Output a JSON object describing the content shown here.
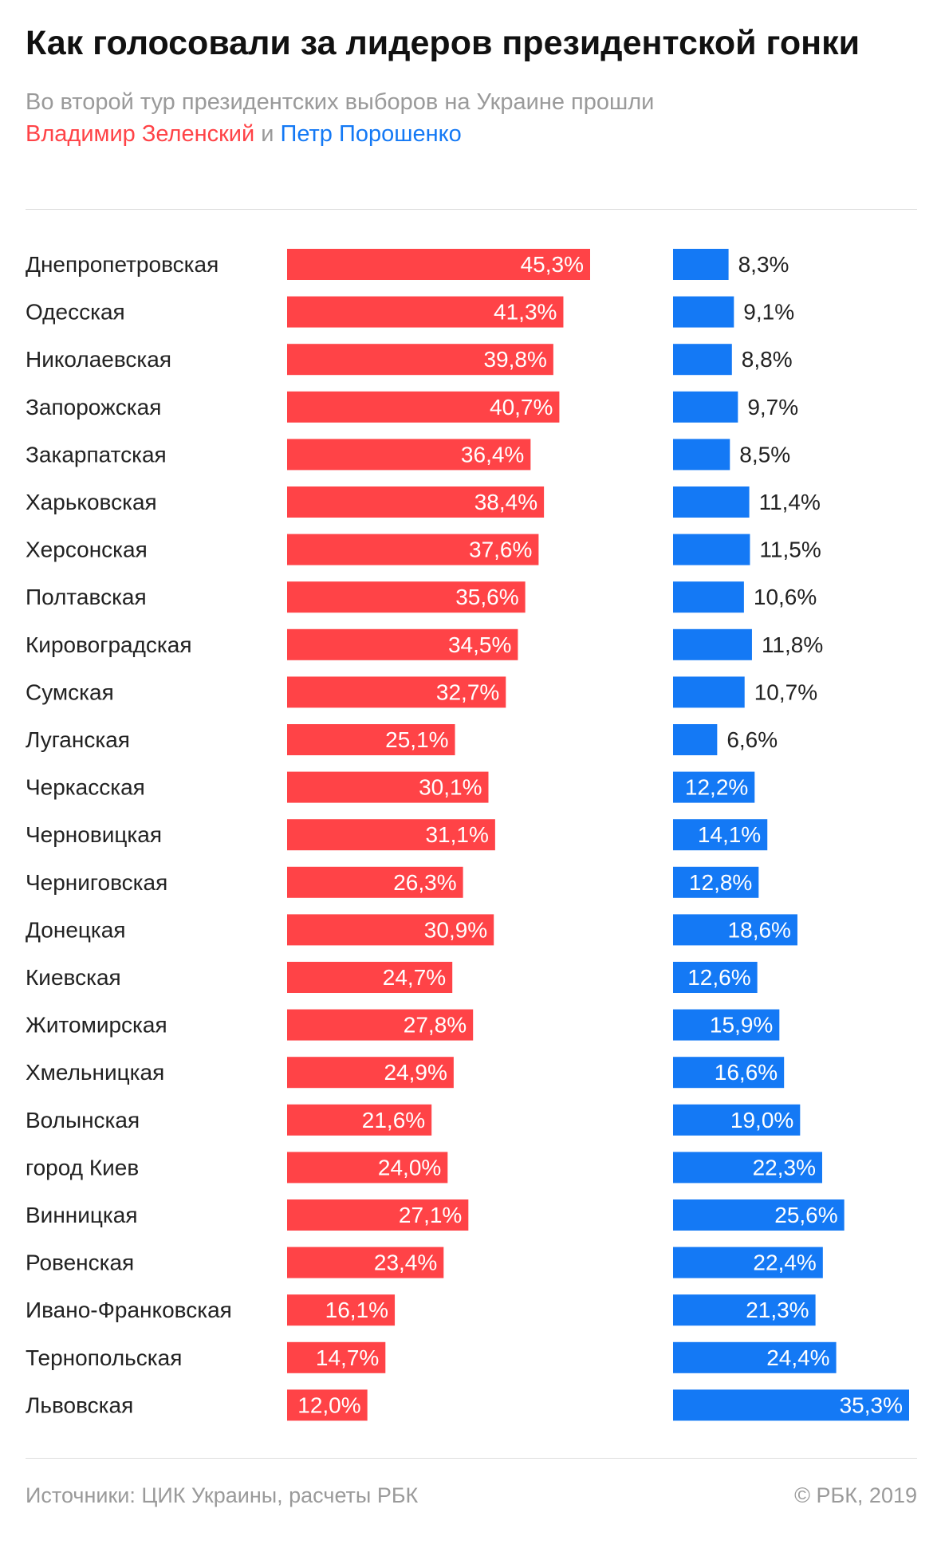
{
  "header": {
    "title": "Как голосовали за лидеров президентской гонки",
    "subtitle_text": "Во второй тур президентских выборов на Украине прошли",
    "legend_red": "Владимир Зеленский",
    "legend_and": "и",
    "legend_blue": "Петр Порошенко"
  },
  "colors": {
    "zelensky": "#ff4347",
    "poroshenko": "#1479f5"
  },
  "chart_data": {
    "type": "bar",
    "orientation": "horizontal",
    "categories": [
      "Днепропетровская",
      "Одесская",
      "Николаевская",
      "Запорожская",
      "Закарпатская",
      "Харьковская",
      "Херсонская",
      "Полтавская",
      "Кировоградская",
      "Сумская",
      "Луганская",
      "Черкасская",
      "Черновицкая",
      "Черниговская",
      "Донецкая",
      "Киевская",
      "Житомирская",
      "Хмельницкая",
      "Волынская",
      "город Киев",
      "Винницкая",
      "Ровенская",
      "Ивано-Франковская",
      "Тернопольская",
      "Львовская"
    ],
    "series": [
      {
        "name": "Владимир Зеленский",
        "values": [
          45.3,
          41.3,
          39.8,
          40.7,
          36.4,
          38.4,
          37.6,
          35.6,
          34.5,
          32.7,
          25.1,
          30.1,
          31.1,
          26.3,
          30.9,
          24.7,
          27.8,
          24.9,
          21.6,
          24.0,
          27.1,
          23.4,
          16.1,
          14.7,
          12.0
        ],
        "labels": [
          "45,3%",
          "41,3%",
          "39,8%",
          "40,7%",
          "36,4%",
          "38,4%",
          "37,6%",
          "35,6%",
          "34,5%",
          "32,7%",
          "25,1%",
          "30,1%",
          "31,1%",
          "26,3%",
          "30,9%",
          "24,7%",
          "27,8%",
          "24,9%",
          "21,6%",
          "24,0%",
          "27,1%",
          "23,4%",
          "16,1%",
          "14,7%",
          "12,0%"
        ]
      },
      {
        "name": "Петр Порошенко",
        "values": [
          8.3,
          9.1,
          8.8,
          9.7,
          8.5,
          11.4,
          11.5,
          10.6,
          11.8,
          10.7,
          6.6,
          12.2,
          14.1,
          12.8,
          18.6,
          12.6,
          15.9,
          16.6,
          19.0,
          22.3,
          25.6,
          22.4,
          21.3,
          24.4,
          35.3
        ],
        "labels": [
          "8,3%",
          "9,1%",
          "8,8%",
          "9,7%",
          "8,5%",
          "11,4%",
          "11,5%",
          "10,6%",
          "11,8%",
          "10,7%",
          "6,6%",
          "12,2%",
          "14,1%",
          "12,8%",
          "18,6%",
          "12,6%",
          "15,9%",
          "16,6%",
          "19,0%",
          "22,3%",
          "25,6%",
          "22,4%",
          "21,3%",
          "24,4%",
          "35,3%"
        ]
      }
    ]
  },
  "footer": {
    "source": "Источники: ЦИК Украины, расчеты РБК",
    "copyright": "© РБК, 2019"
  }
}
